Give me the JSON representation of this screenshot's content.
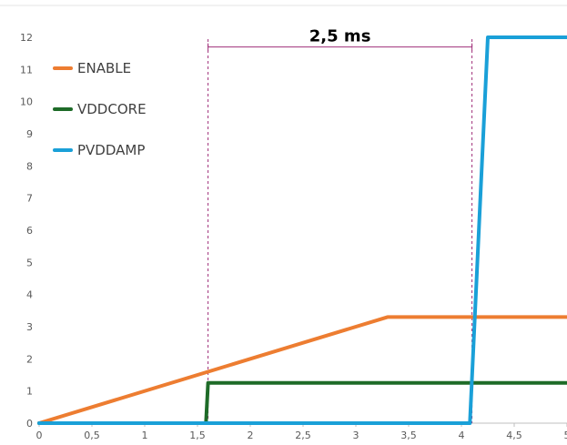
{
  "chart_data": {
    "type": "line",
    "title": "",
    "xlabel": "",
    "ylabel": "",
    "xlim": [
      0,
      5
    ],
    "ylim": [
      0,
      12
    ],
    "x_ticks": [
      "0",
      "0,5",
      "1",
      "1,5",
      "2",
      "2,5",
      "3",
      "3,5",
      "4",
      "4,5",
      "5"
    ],
    "y_ticks": [
      "0",
      "1",
      "2",
      "3",
      "4",
      "5",
      "6",
      "7",
      "8",
      "9",
      "10",
      "11",
      "12"
    ],
    "grid": false,
    "legend_position": "top-left",
    "series": [
      {
        "name": "ENABLE",
        "color": "#ED7D31",
        "points": [
          [
            0,
            0
          ],
          [
            3.3,
            3.3
          ],
          [
            5.05,
            3.3
          ]
        ]
      },
      {
        "name": "VDDCORE",
        "color": "#1E6B28",
        "points": [
          [
            0,
            0
          ],
          [
            1.58,
            0
          ],
          [
            1.6,
            1.25
          ],
          [
            5.05,
            1.25
          ]
        ]
      },
      {
        "name": "PVDDAMP",
        "color": "#1AA0D8",
        "points": [
          [
            0,
            0
          ],
          [
            4.08,
            0
          ],
          [
            4.25,
            12
          ],
          [
            5.05,
            12
          ]
        ]
      }
    ],
    "annotation": {
      "label": "2,5 ms",
      "x_start": 1.6,
      "x_end": 4.1,
      "y": 11.7,
      "color": "#A0307A"
    }
  }
}
